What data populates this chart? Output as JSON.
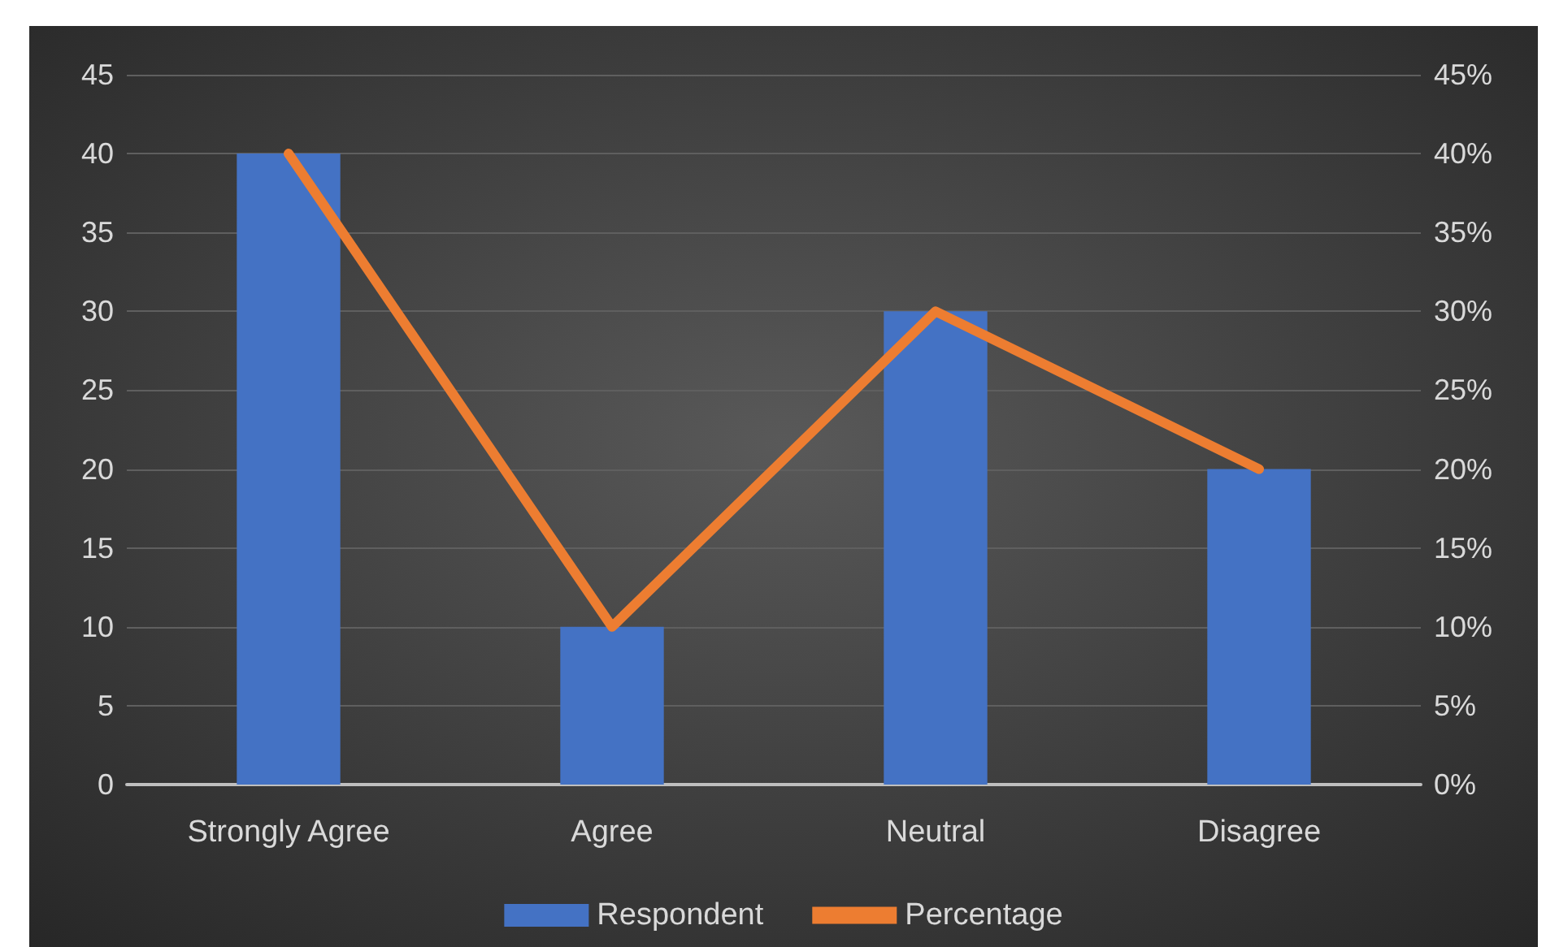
{
  "chart_data": {
    "type": "bar",
    "categories": [
      "Strongly Agree",
      "Agree",
      "Neutral",
      "Disagree"
    ],
    "series": [
      {
        "name": "Respondent",
        "color": "#4472c4",
        "values": [
          40,
          10,
          30,
          20
        ]
      },
      {
        "name": "Percentage",
        "type": "line",
        "axis": "y2",
        "color": "#ed7d31",
        "values": [
          40,
          10,
          30,
          20
        ]
      }
    ],
    "ylim": [
      0,
      45
    ],
    "yticks": [
      0,
      5,
      10,
      15,
      20,
      25,
      30,
      35,
      40,
      45
    ],
    "y2lim": [
      0,
      45
    ],
    "y2ticks": [
      {
        "value": 0,
        "label": "0%"
      },
      {
        "value": 5,
        "label": "5%"
      },
      {
        "value": 10,
        "label": "10%"
      },
      {
        "value": 15,
        "label": "15%"
      },
      {
        "value": 20,
        "label": "20%"
      },
      {
        "value": 25,
        "label": "25%"
      },
      {
        "value": 30,
        "label": "30%"
      },
      {
        "value": 35,
        "label": "35%"
      },
      {
        "value": 40,
        "label": "40%"
      },
      {
        "value": 45,
        "label": "45%"
      }
    ],
    "grid": "y",
    "legend": "bottom",
    "marker": "none",
    "line_style": "solid"
  }
}
